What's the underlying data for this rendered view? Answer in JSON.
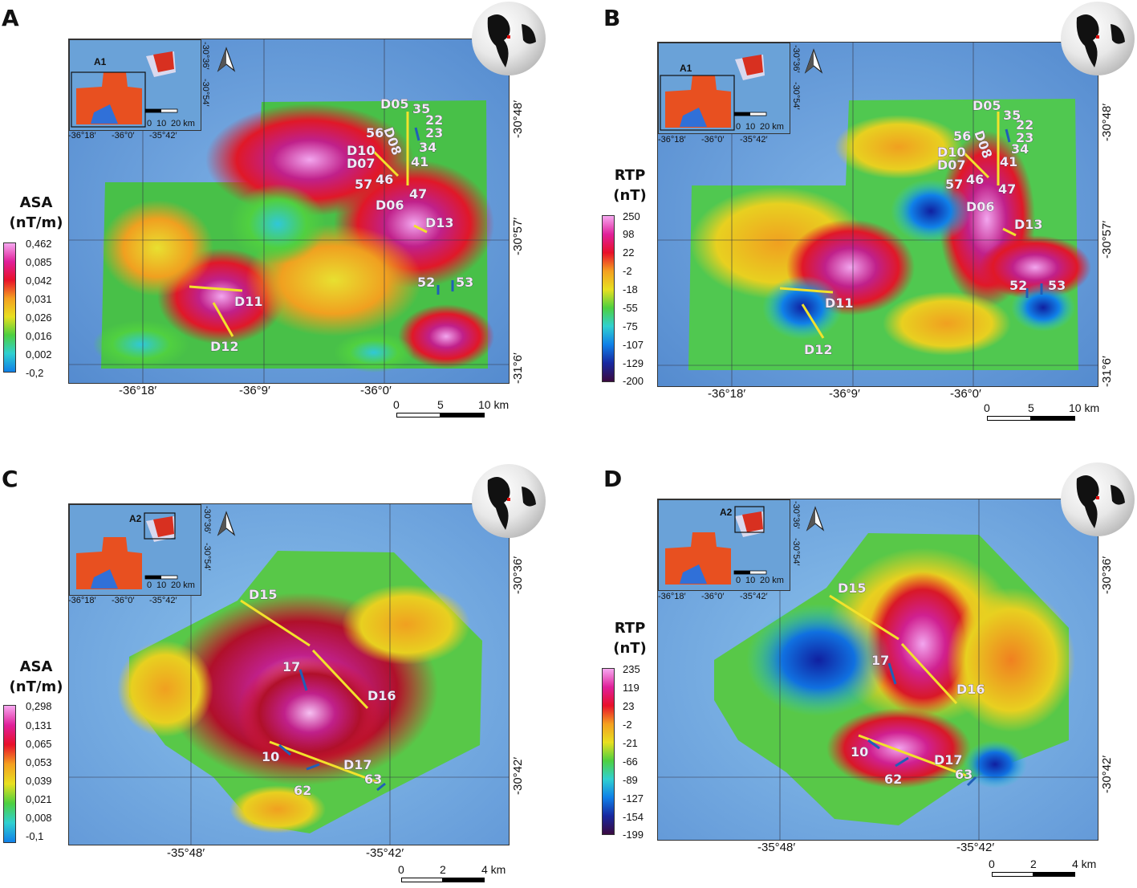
{
  "panels": [
    {
      "letter": "A",
      "legend_title_1": "ASA",
      "legend_title_2": "(nT/m)",
      "legend_ticks": [
        "0,462",
        "0,085",
        "0,042",
        "0,031",
        "0,026",
        "0,016",
        "0,002",
        "-0,2"
      ],
      "x_ticks": [
        "-36°18′",
        "-36°9′",
        "-36°0′"
      ],
      "y_ticks": [
        "-30°48′",
        "-30°57′",
        "-31°6′"
      ],
      "inset_label": "A1",
      "inset_scale": [
        "0",
        "10",
        "20 km"
      ],
      "inset_x_ticks": [
        "-36°18′",
        "-36°0′",
        "-35°42′"
      ],
      "inset_y_ticks": [
        "-30°36′",
        "-30°54′"
      ],
      "scale": [
        "0",
        "5",
        "10 km"
      ],
      "labels": [
        "D05",
        "35",
        "22",
        "23",
        "56",
        "D08",
        "34",
        "D10",
        "D07",
        "41",
        "46",
        "57",
        "47",
        "D06",
        "D13",
        "52",
        "53",
        "D11",
        "D12"
      ]
    },
    {
      "letter": "B",
      "legend_title_1": "RTP",
      "legend_title_2": "(nT)",
      "legend_ticks": [
        "250",
        "98",
        "22",
        "-2",
        "-18",
        "-55",
        "-75",
        "-107",
        "-129",
        "-200"
      ],
      "x_ticks": [
        "-36°18′",
        "-36°9′",
        "-36°0′"
      ],
      "y_ticks": [
        "-30°48′",
        "-30°57′",
        "-31°6′"
      ],
      "inset_label": "A1",
      "inset_scale": [
        "0",
        "10",
        "20 km"
      ],
      "inset_x_ticks": [
        "-36°18′",
        "-36°0′",
        "-35°42′"
      ],
      "inset_y_ticks": [
        "-30°36′",
        "-30°54′"
      ],
      "scale": [
        "0",
        "5",
        "10 km"
      ],
      "labels": [
        "D05",
        "35",
        "22",
        "23",
        "56",
        "D08",
        "34",
        "D10",
        "D07",
        "41",
        "46",
        "57",
        "47",
        "D06",
        "D13",
        "52",
        "53",
        "D11",
        "D12"
      ]
    },
    {
      "letter": "C",
      "legend_title_1": "ASA",
      "legend_title_2": "(nT/m)",
      "legend_ticks": [
        "0,298",
        "0,131",
        "0,065",
        "0,053",
        "0,039",
        "0,021",
        "0,008",
        "-0,1"
      ],
      "x_ticks": [
        "-35°48′",
        "-35°42′"
      ],
      "y_ticks": [
        "-30°36′",
        "-30°42′"
      ],
      "inset_label": "A2",
      "inset_scale": [
        "0",
        "10",
        "20 km"
      ],
      "inset_x_ticks": [
        "-36°18′",
        "-36°0′",
        "-35°42′"
      ],
      "inset_y_ticks": [
        "-30°36′",
        "-30°54′"
      ],
      "scale": [
        "0",
        "2",
        "4 km"
      ],
      "labels": [
        "D15",
        "17",
        "D16",
        "10",
        "D17",
        "62",
        "63"
      ]
    },
    {
      "letter": "D",
      "legend_title_1": "RTP",
      "legend_title_2": "(nT)",
      "legend_ticks": [
        "235",
        "119",
        "23",
        "-2",
        "-21",
        "-66",
        "-89",
        "-127",
        "-154",
        "-199"
      ],
      "x_ticks": [
        "-35°48′",
        "-35°42′"
      ],
      "y_ticks": [
        "-30°36′",
        "-30°42′"
      ],
      "inset_label": "A2",
      "inset_scale": [
        "0",
        "10",
        "20 km"
      ],
      "inset_x_ticks": [
        "-36°18′",
        "-36°0′",
        "-35°42′"
      ],
      "inset_y_ticks": [
        "-30°36′",
        "-30°54′"
      ],
      "scale": [
        "0",
        "2",
        "4 km"
      ],
      "labels": [
        "D15",
        "17",
        "D16",
        "10",
        "D17",
        "62",
        "63"
      ]
    }
  ],
  "colors": {
    "ocean": "#5f95d6",
    "dike_line": "#f2e22c",
    "well_marker": "#1f5fb8",
    "location_dot": "#e01010"
  }
}
